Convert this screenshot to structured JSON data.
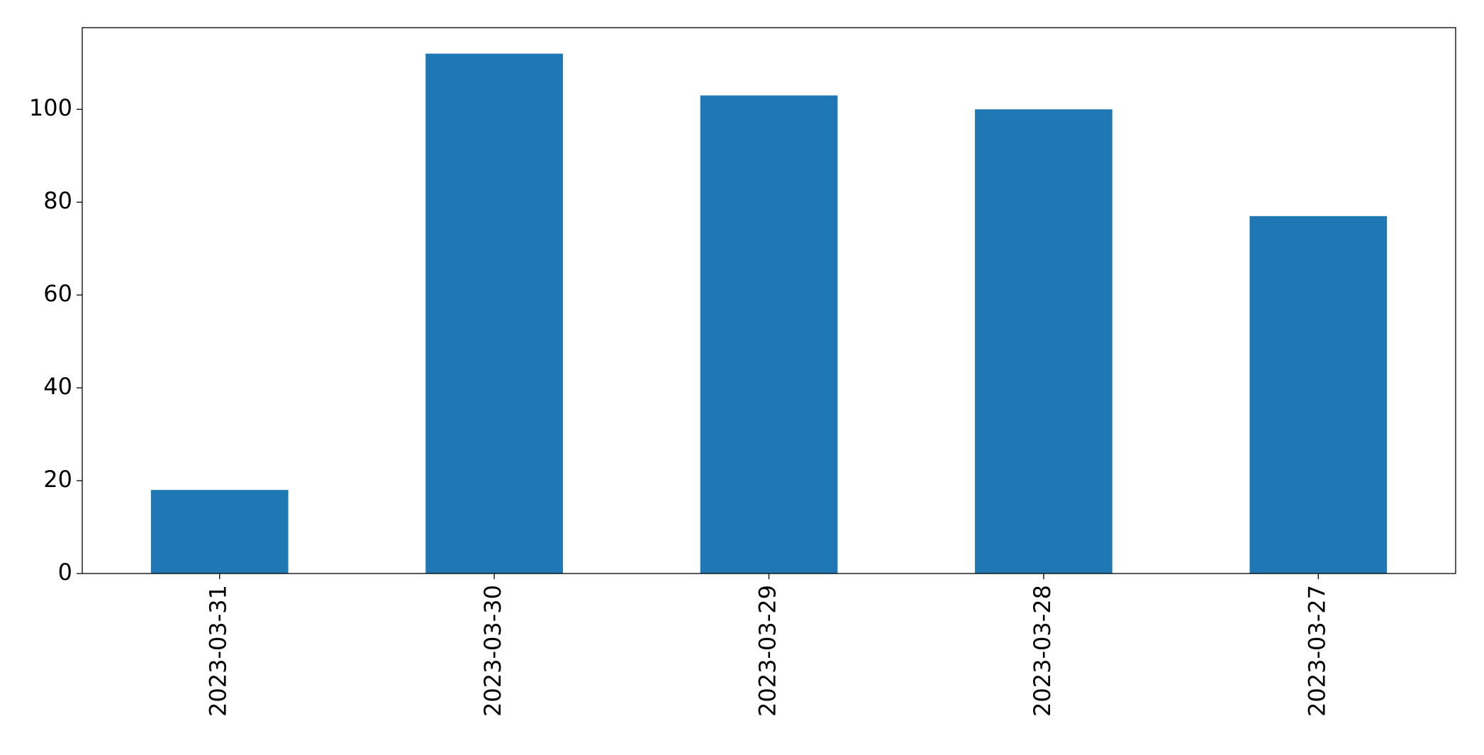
{
  "chart_data": {
    "type": "bar",
    "categories": [
      "2023-03-31",
      "2023-03-30",
      "2023-03-29",
      "2023-03-28",
      "2023-03-27"
    ],
    "values": [
      18,
      112,
      103,
      100,
      77
    ],
    "color": "#1f77b4",
    "ylim": [
      0,
      117.6
    ],
    "yticks": [
      0,
      20,
      40,
      60,
      80,
      100
    ],
    "grid": false
  }
}
